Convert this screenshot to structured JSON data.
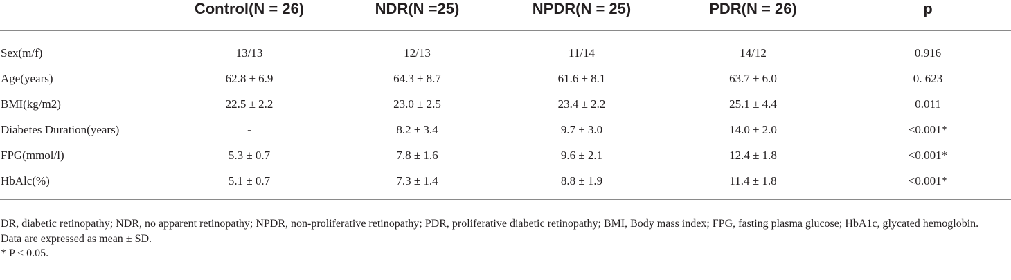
{
  "table": {
    "headers": [
      "",
      "Control(N = 26)",
      "NDR(N =25)",
      "NPDR(N = 25)",
      "PDR(N = 26)",
      "p"
    ],
    "rows": [
      {
        "label": "Sex(m/f)",
        "cells": [
          "13/13",
          "12/13",
          "11/14",
          "14/12",
          "0.916"
        ]
      },
      {
        "label": "Age(years)",
        "cells": [
          "62.8 ± 6.9",
          "64.3 ± 8.7",
          "61.6 ± 8.1",
          "63.7 ± 6.0",
          "0. 623"
        ]
      },
      {
        "label": "BMI(kg/m2)",
        "cells": [
          "22.5 ± 2.2",
          "23.0 ± 2.5",
          "23.4 ± 2.2",
          "25.1 ± 4.4",
          "0.011"
        ]
      },
      {
        "label": "Diabetes Duration(years)",
        "cells": [
          "-",
          "8.2 ± 3.4",
          "9.7 ± 3.0",
          "14.0 ± 2.0",
          "<0.001*"
        ]
      },
      {
        "label": "FPG(mmol/l)",
        "cells": [
          "5.3 ± 0.7",
          "7.8 ± 1.6",
          "9.6 ± 2.1",
          "12.4 ± 1.8",
          "<0.001*"
        ]
      },
      {
        "label": "HbAlc(%)",
        "cells": [
          "5.1 ± 0.7",
          "7.3 ± 1.4",
          "8.8 ± 1.9",
          "11.4 ± 1.8",
          "<0.001*"
        ]
      }
    ]
  },
  "footnotes": {
    "abbreviations": "DR, diabetic retinopathy; NDR, no apparent retinopathy; NPDR, non-proliferative retinopathy; PDR, proliferative diabetic retinopathy; BMI, Body mass index; FPG, fasting plasma glucose; HbA1c, glycated hemoglobin.",
    "data_note": "Data are expressed as mean ± SD.",
    "significance": "* P ≤ 0.05."
  }
}
